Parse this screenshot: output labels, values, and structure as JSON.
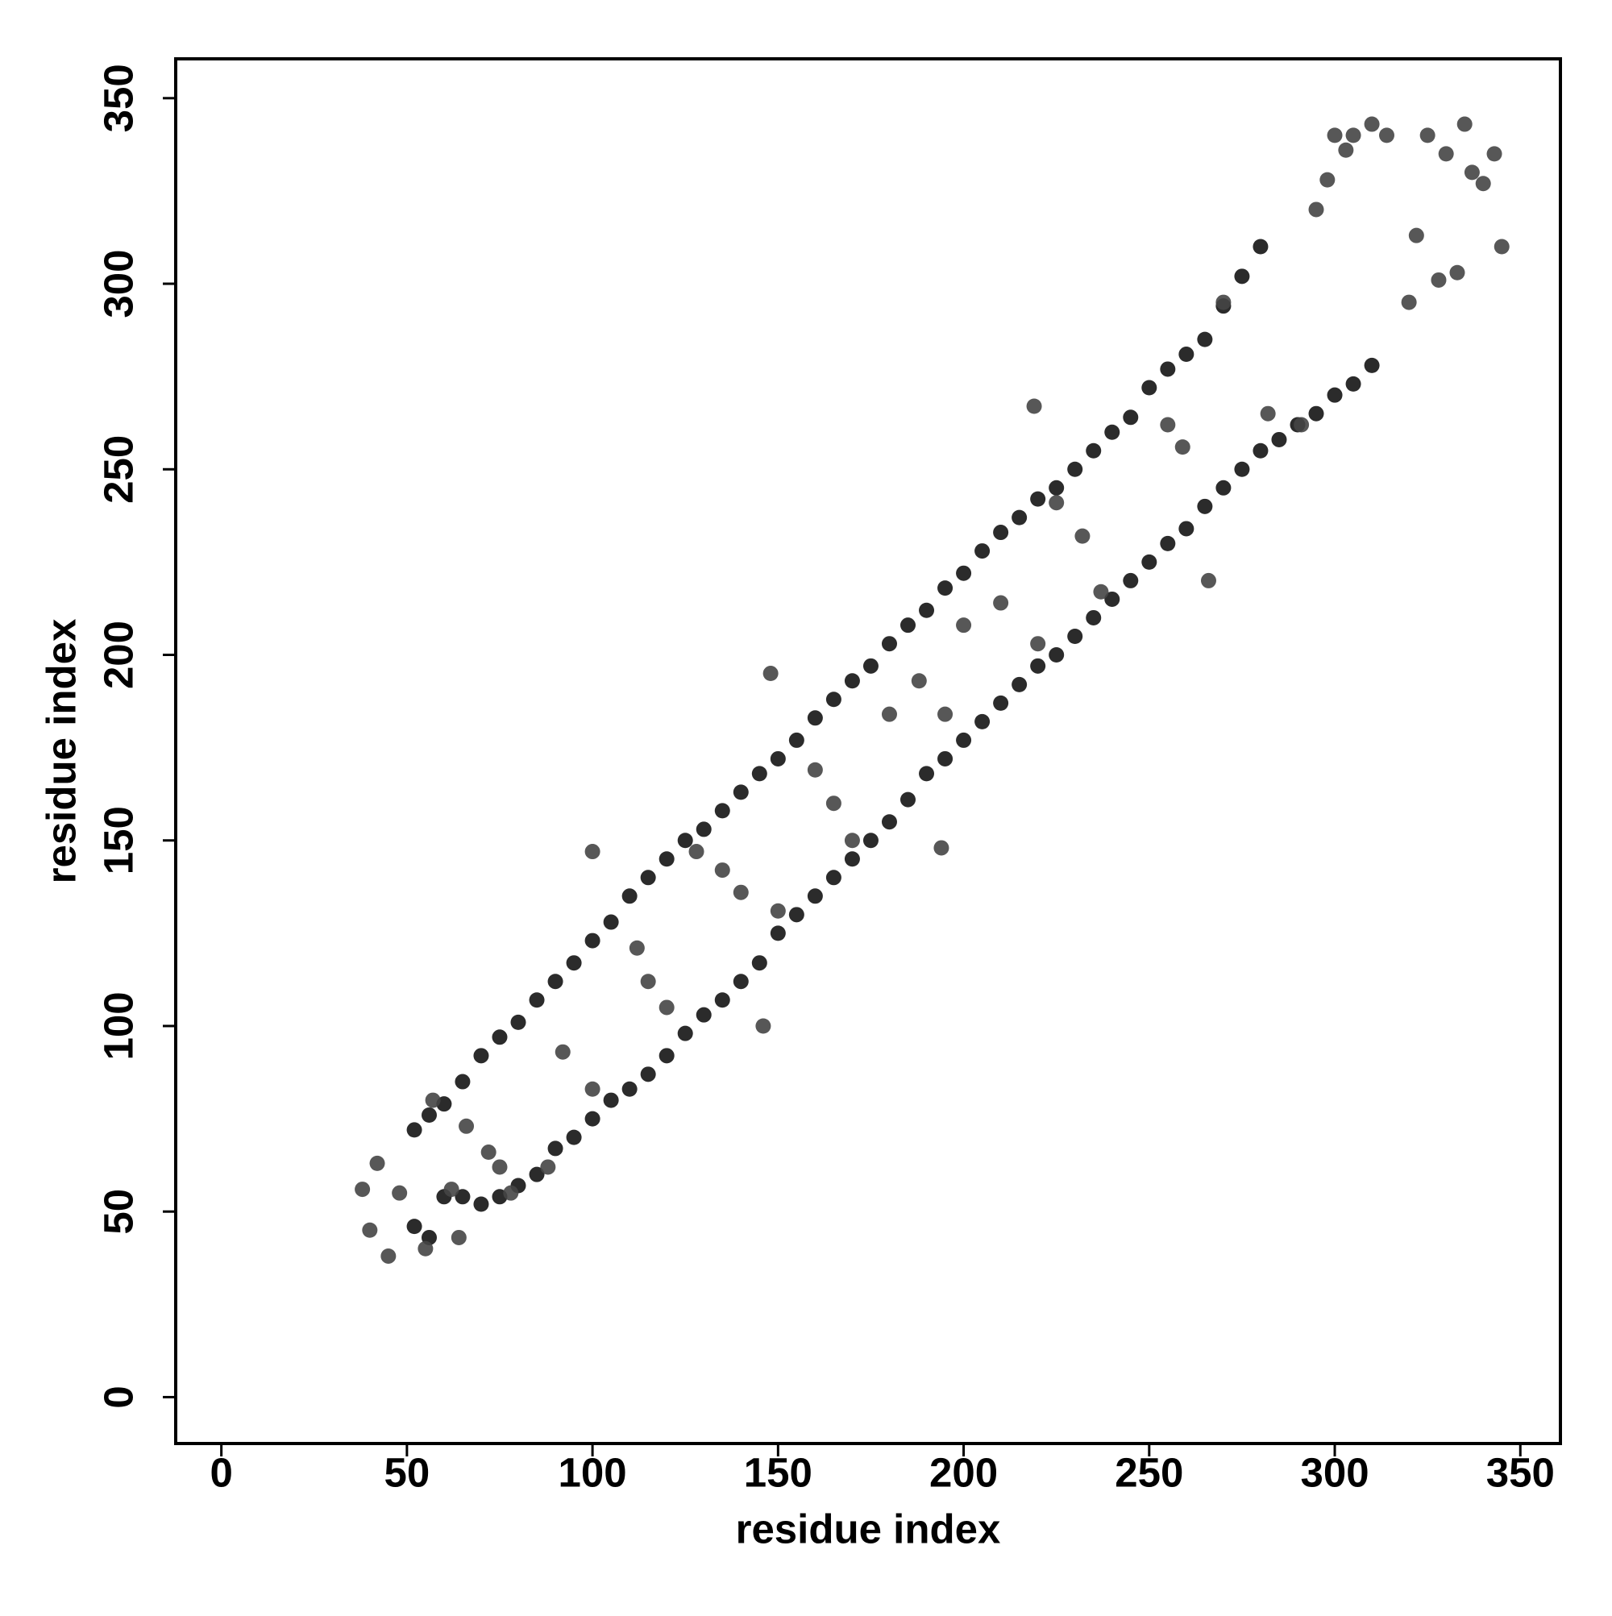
{
  "chart_data": {
    "type": "scatter",
    "x_label": "residue index",
    "y_label": "residue index",
    "xlim": [
      -12.3,
      360.8
    ],
    "ylim": [
      -12.5,
      360.6
    ],
    "xticks": [
      0,
      50,
      100,
      150,
      200,
      250,
      300,
      350
    ],
    "yticks": [
      0,
      50,
      100,
      150,
      200,
      250,
      300,
      350
    ],
    "series": [
      {
        "color": "#141414",
        "x": [
          52,
          56,
          60,
          65,
          70,
          75,
          80,
          85,
          90,
          95,
          100,
          105,
          110,
          115,
          120,
          125,
          130,
          135,
          140,
          145,
          150,
          155,
          160,
          165,
          170,
          175,
          180,
          185,
          190,
          195,
          200,
          205,
          210,
          215,
          220,
          225,
          230,
          235,
          240,
          245,
          250,
          255,
          260,
          265,
          270,
          275,
          280
        ],
        "y": [
          72,
          76,
          79,
          85,
          92,
          97,
          101,
          107,
          112,
          117,
          123,
          128,
          135,
          140,
          145,
          150,
          153,
          158,
          163,
          168,
          172,
          177,
          183,
          188,
          193,
          197,
          203,
          208,
          212,
          218,
          222,
          228,
          233,
          237,
          242,
          245,
          250,
          255,
          260,
          264,
          272,
          277,
          281,
          285,
          294,
          302,
          310
        ]
      },
      {
        "color": "#141414",
        "x": [
          52,
          56,
          60,
          65,
          70,
          75,
          80,
          85,
          90,
          95,
          100,
          105,
          110,
          115,
          120,
          125,
          130,
          135,
          140,
          145,
          150,
          155,
          160,
          165,
          170,
          175,
          180,
          185,
          190,
          195,
          200,
          205,
          210,
          215,
          220,
          225,
          230,
          235,
          240,
          245,
          250,
          255,
          260,
          265,
          270,
          275,
          280,
          285,
          290,
          295,
          300,
          305,
          310
        ],
        "y": [
          46,
          43,
          54,
          54,
          52,
          54,
          57,
          60,
          67,
          70,
          75,
          80,
          83,
          87,
          92,
          98,
          103,
          107,
          112,
          117,
          125,
          130,
          135,
          140,
          145,
          150,
          155,
          161,
          168,
          172,
          177,
          182,
          187,
          192,
          197,
          200,
          205,
          210,
          215,
          220,
          225,
          230,
          234,
          240,
          245,
          250,
          255,
          258,
          262,
          265,
          270,
          273,
          278
        ]
      },
      {
        "color": "#454545",
        "x": [
          38,
          40,
          42,
          45,
          48,
          55,
          57,
          62,
          64,
          66,
          72,
          75,
          78,
          88,
          92,
          100,
          100,
          112,
          115,
          120,
          128,
          135,
          140,
          146,
          148,
          150,
          160,
          165,
          170,
          180,
          188,
          194,
          195,
          200,
          210,
          219,
          220,
          225,
          232,
          237,
          255,
          259,
          266,
          270,
          282,
          291,
          295,
          298,
          300,
          303,
          305,
          310,
          314,
          320,
          322,
          325,
          328,
          330,
          333,
          335,
          337,
          340,
          343,
          345
        ],
        "y": [
          56,
          45,
          63,
          38,
          55,
          40,
          80,
          56,
          43,
          73,
          66,
          62,
          55,
          62,
          93,
          147,
          83,
          121,
          112,
          105,
          147,
          142,
          136,
          100,
          195,
          131,
          169,
          160,
          150,
          184,
          193,
          148,
          184,
          208,
          214,
          267,
          203,
          241,
          232,
          217,
          262,
          256,
          220,
          295,
          265,
          262,
          320,
          328,
          340,
          336,
          340,
          343,
          340,
          295,
          313,
          340,
          301,
          335,
          303,
          343,
          330,
          327,
          335,
          310
        ]
      }
    ]
  }
}
